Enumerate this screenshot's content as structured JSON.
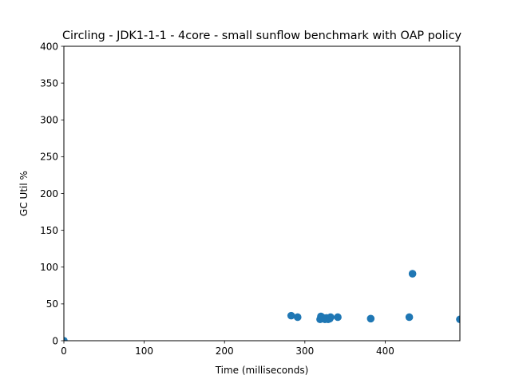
{
  "chart_data": {
    "type": "scatter",
    "title": "Circling - JDK1-1-1 - 4core -  small sunflow benchmark with OAP policy",
    "xlabel": "Time (milliseconds)",
    "ylabel": "GC Util %",
    "xlim": [
      0,
      493
    ],
    "ylim": [
      0,
      400
    ],
    "xticks": [
      "0",
      "100",
      "200",
      "300",
      "400"
    ],
    "yticks": [
      "0",
      "50",
      "100",
      "150",
      "200",
      "250",
      "300",
      "350",
      "400"
    ],
    "grid": false,
    "marker_color": "#1f77b4",
    "series": [
      {
        "x": [
          0,
          283,
          291,
          319,
          320,
          323,
          325,
          327,
          329,
          331,
          332,
          341,
          382,
          430,
          434,
          493
        ],
        "y": [
          0,
          34,
          32,
          29,
          33,
          31,
          29,
          31,
          29,
          30,
          32,
          32,
          30,
          32,
          91,
          29
        ]
      }
    ]
  }
}
